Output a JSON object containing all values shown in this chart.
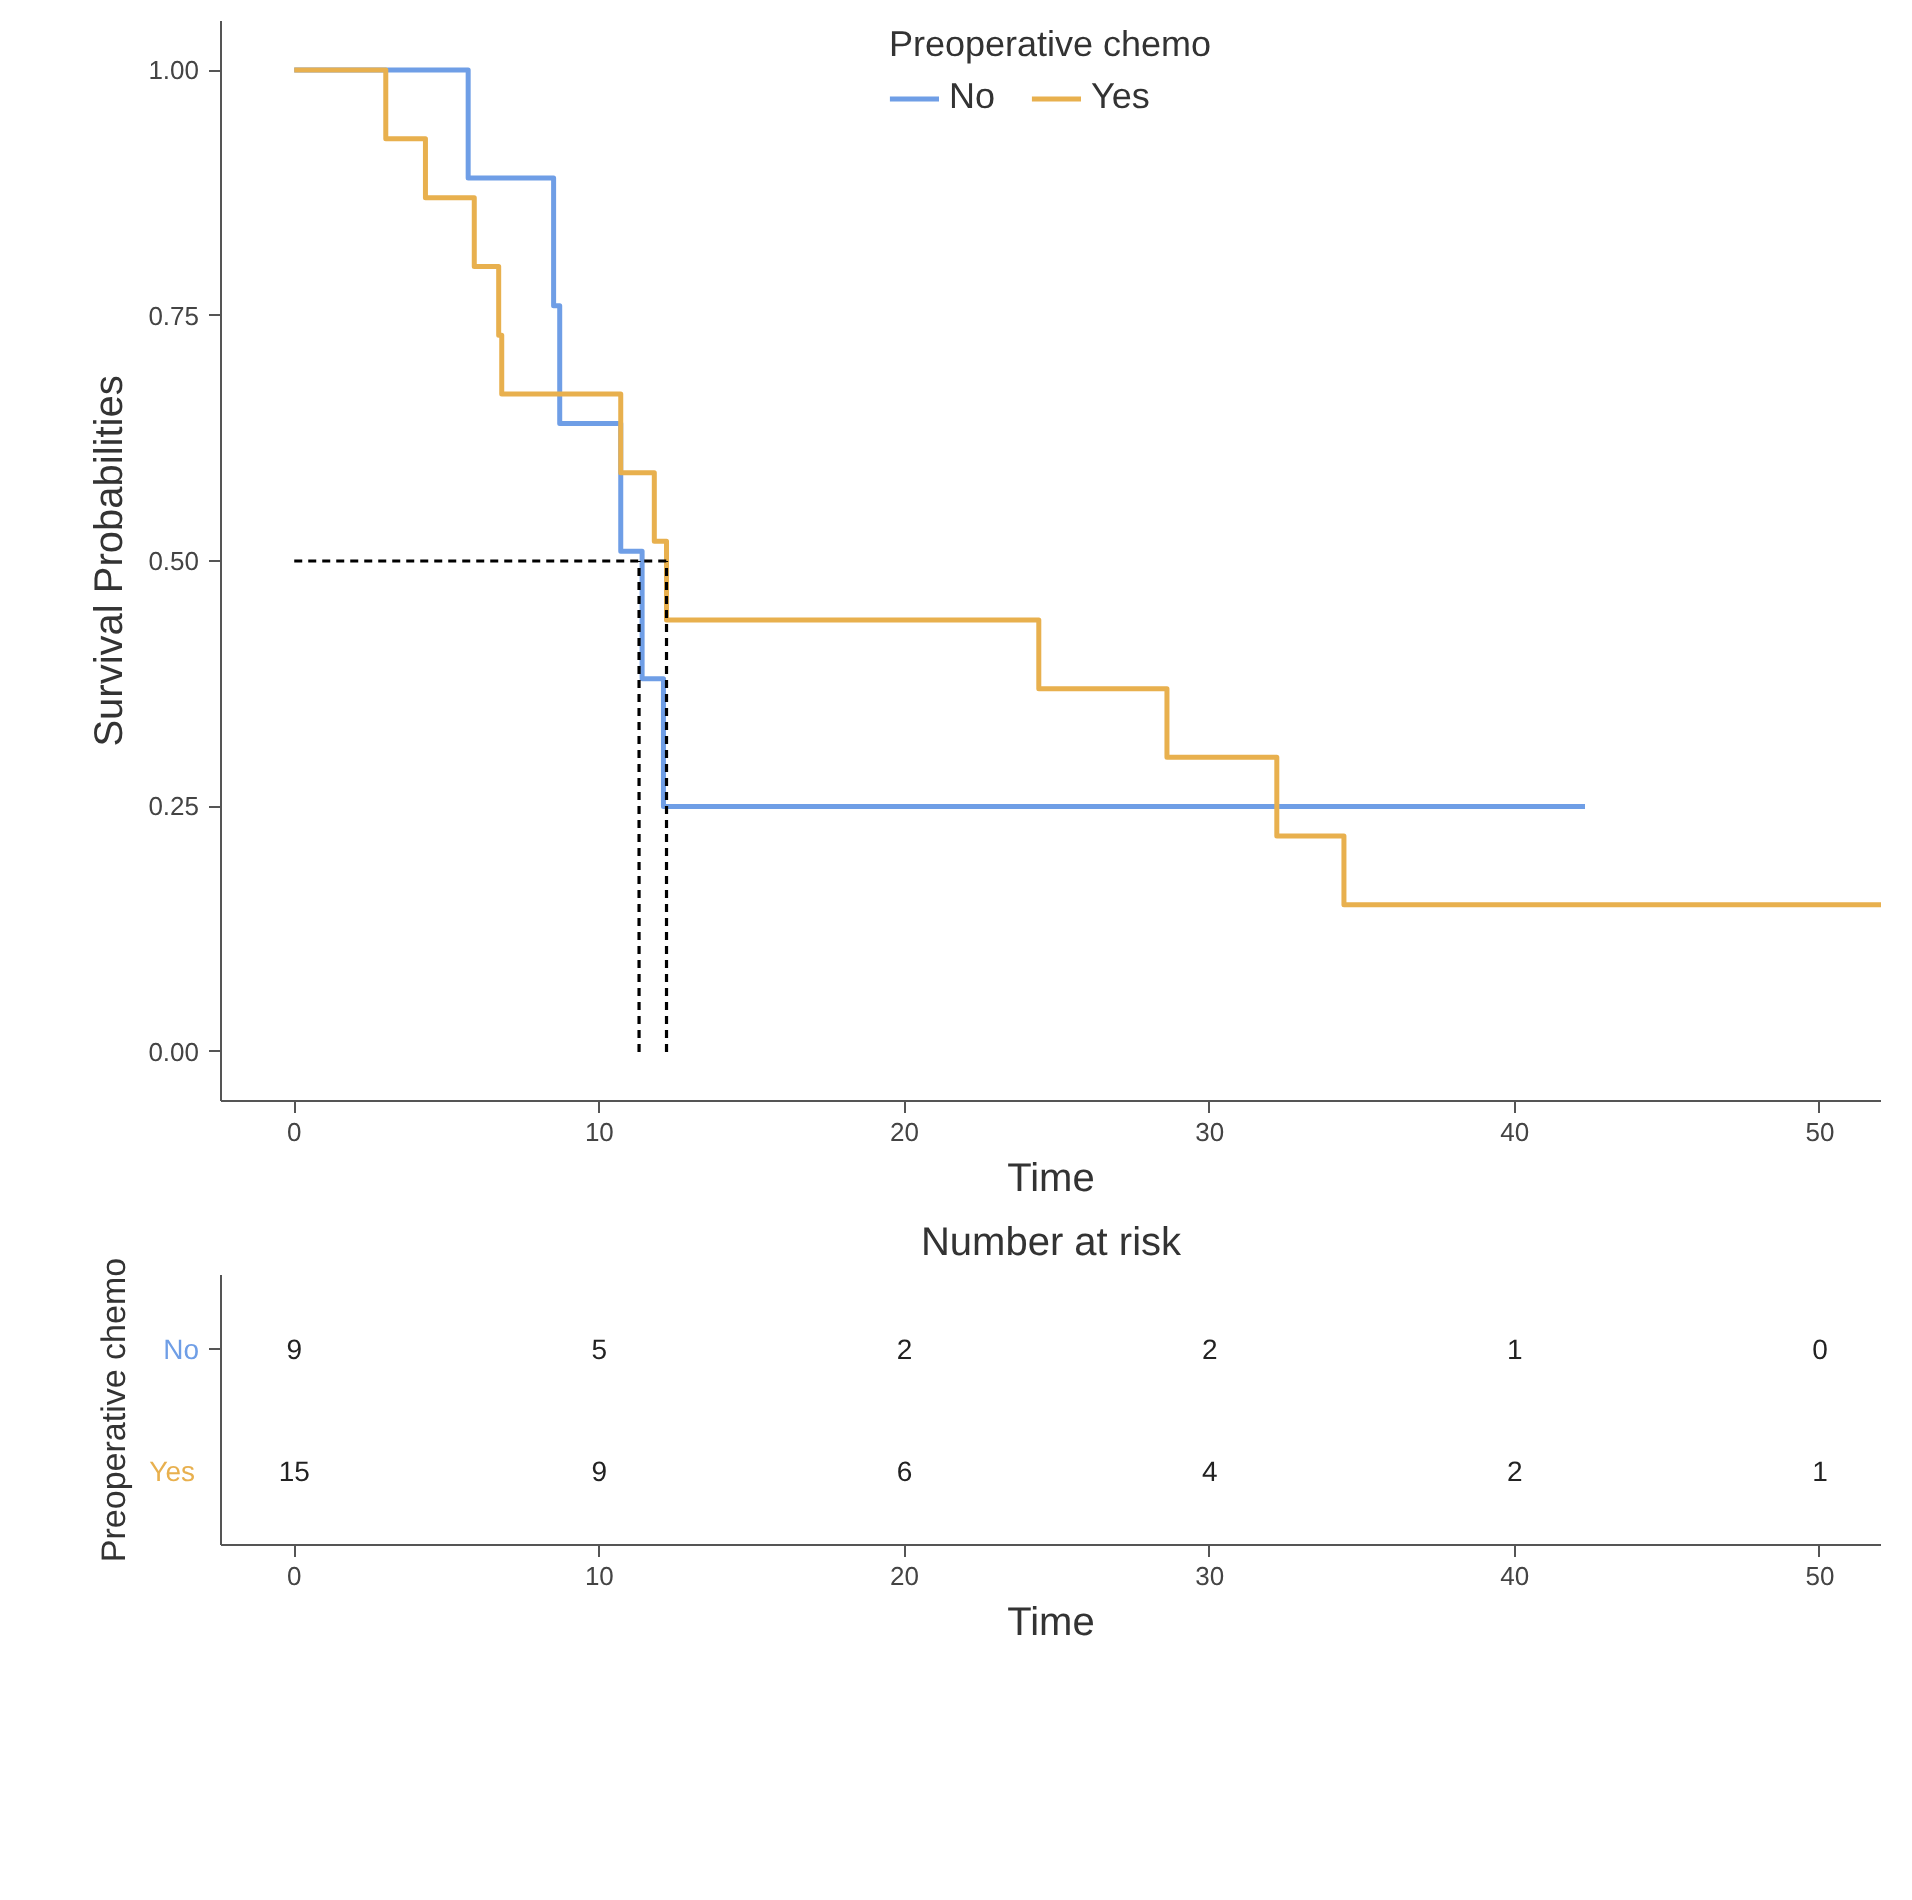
{
  "chart_data": [
    {
      "type": "step",
      "xlabel": "Time",
      "ylabel": "Survival Probabilities",
      "legend_title": "Preoperative chemo",
      "legend": "top",
      "grid": false,
      "marker": "none",
      "xlim": [
        -2.4,
        52
      ],
      "ylim": [
        -0.05,
        1.05
      ],
      "xticks": [
        0,
        10,
        20,
        30,
        40,
        50
      ],
      "yticks": [
        {
          "value": 0,
          "label": "0.00"
        },
        {
          "value": 0.25,
          "label": "0.25"
        },
        {
          "value": 0.5,
          "label": "0.50"
        },
        {
          "value": 0.75,
          "label": "0.75"
        },
        {
          "value": 1,
          "label": "1.00"
        }
      ],
      "series": [
        {
          "name": "No",
          "color": "#6f9ee6",
          "x": [
            0,
            5.7,
            8.5,
            8.7,
            10.7,
            11.4,
            12.1,
            42.3
          ],
          "values": [
            1,
            0.89,
            0.76,
            0.64,
            0.51,
            0.38,
            0.25,
            0.25
          ]
        },
        {
          "name": "Yes",
          "color": "#e8b04e",
          "x": [
            0,
            3.0,
            4.3,
            5.9,
            6.7,
            6.8,
            10.7,
            11.8,
            12.2,
            24.4,
            28.6,
            32.2,
            34.4,
            52
          ],
          "values": [
            1,
            0.93,
            0.87,
            0.8,
            0.73,
            0.67,
            0.59,
            0.52,
            0.44,
            0.37,
            0.3,
            0.22,
            0.15,
            0.15
          ]
        },
        {
          "type": "line",
          "color": "#000000",
          "line_style": "dashed",
          "x": [
            0,
            12.2
          ],
          "values": [
            0.5,
            0.5
          ]
        },
        {
          "type": "line",
          "color": "#000000",
          "line_style": "dashed",
          "x": [
            11.3,
            11.3
          ],
          "values": [
            0,
            0.5
          ]
        },
        {
          "type": "line",
          "color": "#000000",
          "line_style": "dashed",
          "x": [
            12.2,
            12.2
          ],
          "values": [
            0,
            0.5
          ]
        }
      ]
    },
    {
      "type": "heatmap",
      "title": "Number at risk",
      "xlabel": "Time",
      "ylabel": "Preoperative chemo",
      "categories": [
        "0",
        "10",
        "20",
        "30",
        "40",
        "50"
      ],
      "y_categories": [
        "No",
        "Yes"
      ],
      "colors": [
        "#6f9ee6",
        "#e8b04e"
      ],
      "data_labels": true,
      "cells": [
        [
          9,
          5,
          2,
          2,
          1,
          0
        ],
        [
          15,
          9,
          6,
          4,
          2,
          1
        ]
      ]
    }
  ]
}
